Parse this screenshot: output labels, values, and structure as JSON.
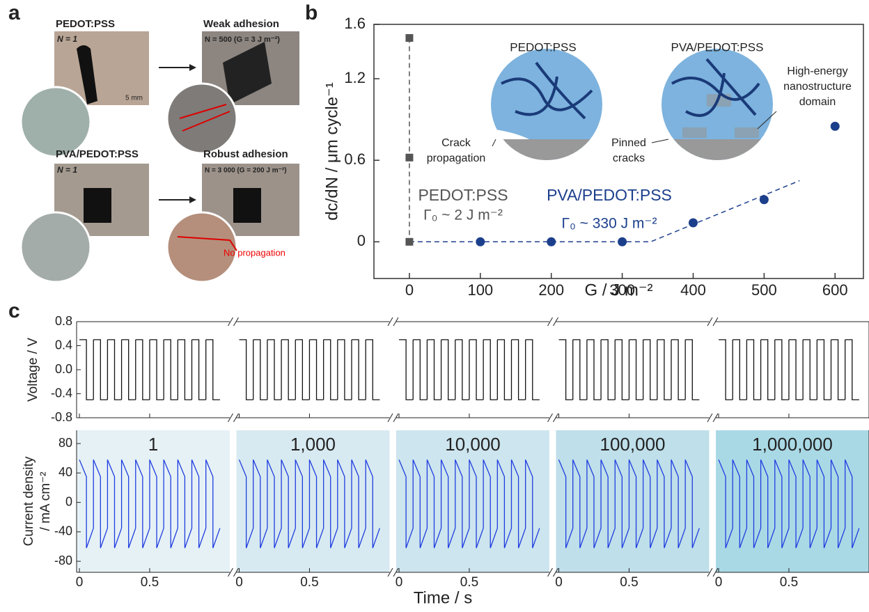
{
  "panel_labels": [
    "a",
    "b",
    "c"
  ],
  "panel_a": {
    "photos": [
      {
        "title": "PEDOT:PSS",
        "caption": "N = 1",
        "scale": "5 mm"
      },
      {
        "title": "Weak adhesion",
        "caption": "N = 500 (G = 3 J m⁻²)"
      },
      {
        "title": "PVA/PEDOT:PSS",
        "caption": "N = 1"
      },
      {
        "title": "Robust adhesion",
        "caption": "N = 3 000 (G = 200 J m⁻²)",
        "note": "No propagation"
      }
    ]
  },
  "chart_data": [
    {
      "type": "scatter",
      "xlabel": "G / J m⁻²",
      "ylabel": "dc/dN / μm cycle⁻¹",
      "xlim": [
        -50,
        640
      ],
      "ylim": [
        -0.27,
        1.6
      ],
      "xticks": [
        0,
        100,
        200,
        300,
        400,
        500,
        600
      ],
      "yticks": [
        0,
        0.6,
        1.2,
        1.6
      ],
      "series": [
        {
          "name": "PEDOT:PSS",
          "label": "Γ₀ ~ 2 J m⁻²",
          "color": "#555555",
          "marker": "square",
          "x": [
            0,
            0,
            0
          ],
          "values": [
            1.5,
            0.62,
            0
          ]
        },
        {
          "name": "PVA/PEDOT:PSS",
          "label": "Γ₀ ~ 330 J m⁻²",
          "color": "#1c3f8c",
          "marker": "circle",
          "x": [
            100,
            200,
            300,
            400,
            500,
            600
          ],
          "values": [
            0,
            0,
            0,
            0.14,
            0.31,
            0.85
          ]
        }
      ],
      "fit": {
        "color": "#1c3f8c",
        "x": [
          0,
          340,
          550
        ],
        "values": [
          0,
          0,
          0.45
        ]
      },
      "insets": [
        {
          "title": "PEDOT:PSS",
          "callouts": [
            [
              "Crack",
              "propagation"
            ]
          ]
        },
        {
          "title": "PVA/PEDOT:PSS",
          "callouts": [
            [
              "Pinned",
              "cracks"
            ],
            [
              "High-energy",
              "nanostructure",
              "domain"
            ]
          ]
        }
      ]
    },
    {
      "type": "line",
      "ylabel": "Voltage / V",
      "ylim": [
        -0.8,
        0.8
      ],
      "yticks": [
        -0.8,
        -0.4,
        {
          "value": 0,
          "label": "0.0"
        },
        0.4,
        0.8
      ],
      "xlim": [
        -0.02,
        1.07
      ],
      "cycles": 10,
      "period_x": [
        0,
        0.05,
        0.05,
        0.1
      ],
      "values": [
        0.5,
        0.5,
        -0.5,
        -0.5
      ],
      "color": "#111111"
    },
    {
      "type": "line",
      "ylabel": [
        "Current density",
        "/ mA cm⁻²"
      ],
      "xlabel": "Time / s",
      "ylim": [
        -95,
        98
      ],
      "yticks": [
        -80,
        -40,
        0,
        40,
        80
      ],
      "xlim": [
        -0.02,
        1.07
      ],
      "xticks": [
        0,
        0.5
      ],
      "segments": [
        "1",
        "1,000",
        "10,000",
        "100,000",
        "1,000,000"
      ],
      "panel_colors": [
        "#e6f1f6",
        "#d8eaf1",
        "#cde5ee",
        "#bfdfea",
        "#aad9e6"
      ],
      "cycles": 10,
      "period_x": [
        0,
        0.05,
        0.05,
        0.1
      ],
      "values": [
        58,
        35,
        -62,
        -35
      ],
      "color": "#1f3de0"
    }
  ]
}
